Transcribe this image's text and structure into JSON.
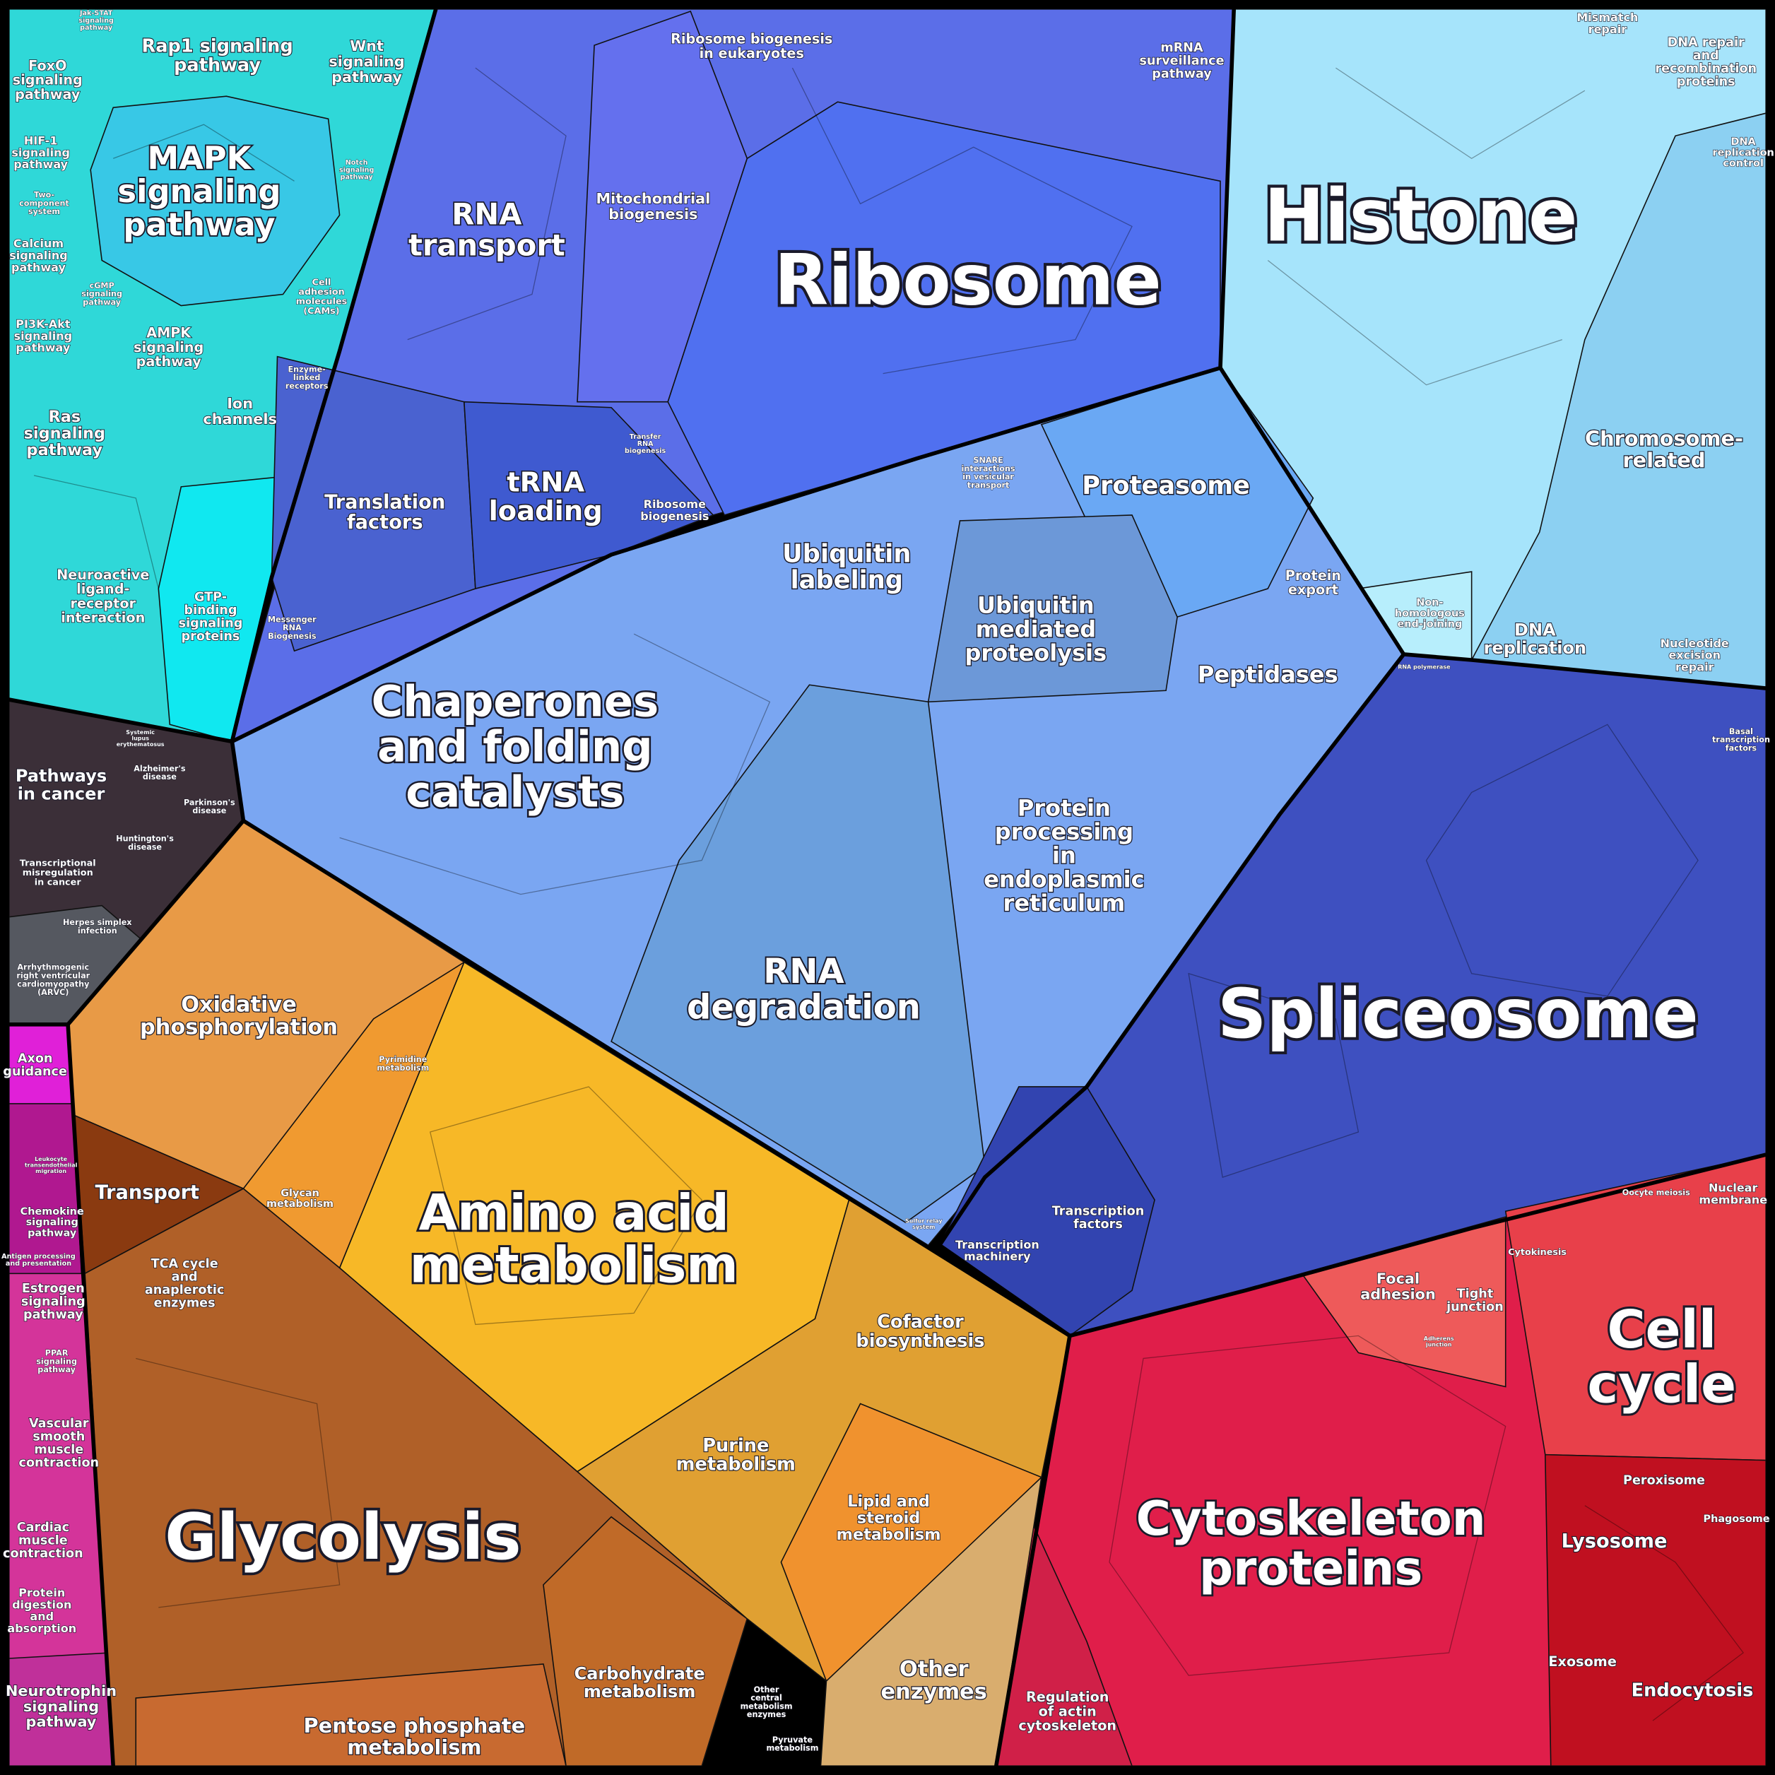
{
  "labels": [
    [
      "Histone"
    ],
    [
      "Ribosome"
    ],
    [
      "Spliceosome"
    ],
    [
      "Glycolysis"
    ],
    [
      "Amino acid",
      "metabolism"
    ],
    [
      "Chaperones",
      "and folding",
      "catalysts"
    ],
    [
      "Cytoskeleton",
      "proteins"
    ],
    [
      "Cell",
      "cycle"
    ],
    [
      "MAPK",
      "signaling",
      "pathway"
    ],
    [
      "RNA",
      "transport"
    ],
    [
      "RNA",
      "degradation"
    ],
    [
      "Proteasome"
    ],
    [
      "Ubiquitin",
      "labeling"
    ],
    [
      "Ubiquitin",
      "mediated",
      "proteolysis"
    ],
    [
      "Protein",
      "processing",
      "in",
      "endoplasmic",
      "reticulum"
    ],
    [
      "Peptidases"
    ],
    [
      "Chromosome-",
      "related"
    ],
    [
      "Translation",
      "factors"
    ],
    [
      "tRNA",
      "loading"
    ],
    [
      "Oxidative",
      "phosphorylation"
    ],
    [
      "Transport"
    ],
    [
      "TCA cycle",
      "and",
      "anaplerotic",
      "enzymes"
    ],
    [
      "Pentose phosphate",
      "metabolism"
    ],
    [
      "Carbohydrate",
      "metabolism"
    ],
    [
      "Other",
      "enzymes"
    ],
    [
      "Lipid and",
      "steroid",
      "metabolism"
    ],
    [
      "Purine",
      "metabolism"
    ],
    [
      "Cofactor",
      "biosynthesis"
    ],
    [
      "Glycan",
      "metabolism"
    ],
    [
      "Pyrimidine",
      "metabolism"
    ],
    [
      "Other",
      "central",
      "metabolism",
      "enzymes"
    ],
    [
      "Pyruvate",
      "metabolism"
    ],
    [
      "Mitochondrial",
      "biogenesis"
    ],
    [
      "Ribosome biogenesis",
      "in eukaryotes"
    ],
    [
      "mRNA",
      "surveillance",
      "pathway"
    ],
    [
      "Transfer",
      "RNA",
      "biogenesis"
    ],
    [
      "Ribosome",
      "biogenesis"
    ],
    [
      "Messenger",
      "RNA",
      "Biogenesis"
    ],
    [
      "SNARE",
      "interactions",
      "in vesicular",
      "transport"
    ],
    [
      "Protein",
      "export"
    ],
    [
      "Non-",
      "homologous",
      "end-joining"
    ],
    [
      "DNA",
      "replication"
    ],
    [
      "Nucleotide",
      "excision",
      "repair"
    ],
    [
      "Mismatch",
      "repair"
    ],
    [
      "DNA repair",
      "and",
      "recombination",
      "proteins"
    ],
    [
      "DNA",
      "replication",
      "control"
    ],
    [
      "RNA polymerase"
    ],
    [
      "Basal",
      "transcription",
      "factors"
    ],
    [
      "Transcription",
      "factors"
    ],
    [
      "Transcription",
      "machinery"
    ],
    [
      "Sulfur relay",
      "system"
    ],
    [
      "Focal",
      "adhesion"
    ],
    [
      "Tight",
      "junction"
    ],
    [
      "Adherens",
      "junction"
    ],
    [
      "Cytokinesis"
    ],
    [
      "Oocyte meiosis"
    ],
    [
      "Nuclear",
      "membrane"
    ],
    [
      "Peroxisome"
    ],
    [
      "Phagosome"
    ],
    [
      "Lysosome"
    ],
    [
      "Exosome"
    ],
    [
      "Endocytosis"
    ],
    [
      "Regulation",
      "of actin",
      "cytoskeleton"
    ],
    [
      "Rap1 signaling",
      "pathway"
    ],
    [
      "Wnt",
      "signaling",
      "pathway"
    ],
    [
      "FoxO",
      "signaling",
      "pathway"
    ],
    [
      "Jak-STAT",
      "signaling",
      "pathway"
    ],
    [
      "HIF-1",
      "signaling",
      "pathway"
    ],
    [
      "Two-",
      "component",
      "system"
    ],
    [
      "Calcium",
      "signaling",
      "pathway"
    ],
    [
      "cGMP",
      "signaling",
      "pathway"
    ],
    [
      "PI3K-Akt",
      "signaling",
      "pathway"
    ],
    [
      "AMPK",
      "signaling",
      "pathway"
    ],
    [
      "Ras",
      "signaling",
      "pathway"
    ],
    [
      "Ion",
      "channels"
    ],
    [
      "Cell",
      "adhesion",
      "molecules",
      "(CAMs)"
    ],
    [
      "Enzyme-",
      "linked",
      "receptors"
    ],
    [
      "Notch",
      "signaling",
      "pathway"
    ],
    [
      "Neuroactive",
      "ligand-",
      "receptor",
      "interaction"
    ],
    [
      "GTP-",
      "binding",
      "signaling",
      "proteins"
    ],
    [
      "Pathways",
      "in cancer"
    ],
    [
      "Systemic",
      "lupus",
      "erythematosus"
    ],
    [
      "Alzheimer's",
      "disease"
    ],
    [
      "Parkinson's",
      "disease"
    ],
    [
      "Huntington's",
      "disease"
    ],
    [
      "Transcriptional",
      "misregulation",
      "in cancer"
    ],
    [
      "Herpes simplex",
      "infection"
    ],
    [
      "Arrhythmogenic",
      "right ventricular",
      "cardiomyopathy",
      "(ARVC)"
    ],
    [
      "Axon",
      "guidance"
    ],
    [
      "Leukocyte",
      "transendothelial",
      "migration"
    ],
    [
      "Chemokine",
      "signaling",
      "pathway"
    ],
    [
      "Antigen processing",
      "and presentation"
    ],
    [
      "Estrogen",
      "signaling",
      "pathway"
    ],
    [
      "PPAR",
      "signaling",
      "pathway"
    ],
    [
      "Vascular",
      "smooth",
      "muscle",
      "contraction"
    ],
    [
      "Cardiac",
      "muscle",
      "contraction"
    ],
    [
      "Protein",
      "digestion",
      "and",
      "absorption"
    ],
    [
      "Neurotrophin",
      "signaling",
      "pathway"
    ]
  ]
}
